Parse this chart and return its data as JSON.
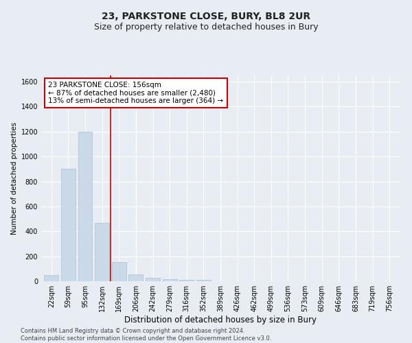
{
  "title": "23, PARKSTONE CLOSE, BURY, BL8 2UR",
  "subtitle": "Size of property relative to detached houses in Bury",
  "xlabel": "Distribution of detached houses by size in Bury",
  "ylabel": "Number of detached properties",
  "categories": [
    "22sqm",
    "59sqm",
    "95sqm",
    "132sqm",
    "169sqm",
    "206sqm",
    "242sqm",
    "279sqm",
    "316sqm",
    "352sqm",
    "389sqm",
    "426sqm",
    "462sqm",
    "499sqm",
    "536sqm",
    "573sqm",
    "609sqm",
    "646sqm",
    "683sqm",
    "719sqm",
    "756sqm"
  ],
  "values": [
    50,
    900,
    1200,
    470,
    155,
    55,
    30,
    15,
    10,
    10,
    0,
    0,
    0,
    0,
    0,
    0,
    0,
    0,
    0,
    0,
    0
  ],
  "bar_color": "#c9d9e8",
  "bar_edgecolor": "#a8c0d4",
  "vline_color": "#cc0000",
  "vline_pos": 3.5,
  "annotation_text": "23 PARKSTONE CLOSE: 156sqm\n← 87% of detached houses are smaller (2,480)\n13% of semi-detached houses are larger (364) →",
  "annotation_box_edgecolor": "#cc0000",
  "annotation_box_facecolor": "white",
  "ylim": [
    0,
    1650
  ],
  "yticks": [
    0,
    200,
    400,
    600,
    800,
    1000,
    1200,
    1400,
    1600
  ],
  "background_color": "#e8edf4",
  "axes_facecolor": "#e8edf4",
  "grid_color": "#ffffff",
  "footnote": "Contains HM Land Registry data © Crown copyright and database right 2024.\nContains public sector information licensed under the Open Government Licence v3.0.",
  "title_fontsize": 10,
  "subtitle_fontsize": 9,
  "xlabel_fontsize": 8.5,
  "ylabel_fontsize": 7.5,
  "tick_fontsize": 7,
  "annotation_fontsize": 7.5,
  "footnote_fontsize": 6
}
